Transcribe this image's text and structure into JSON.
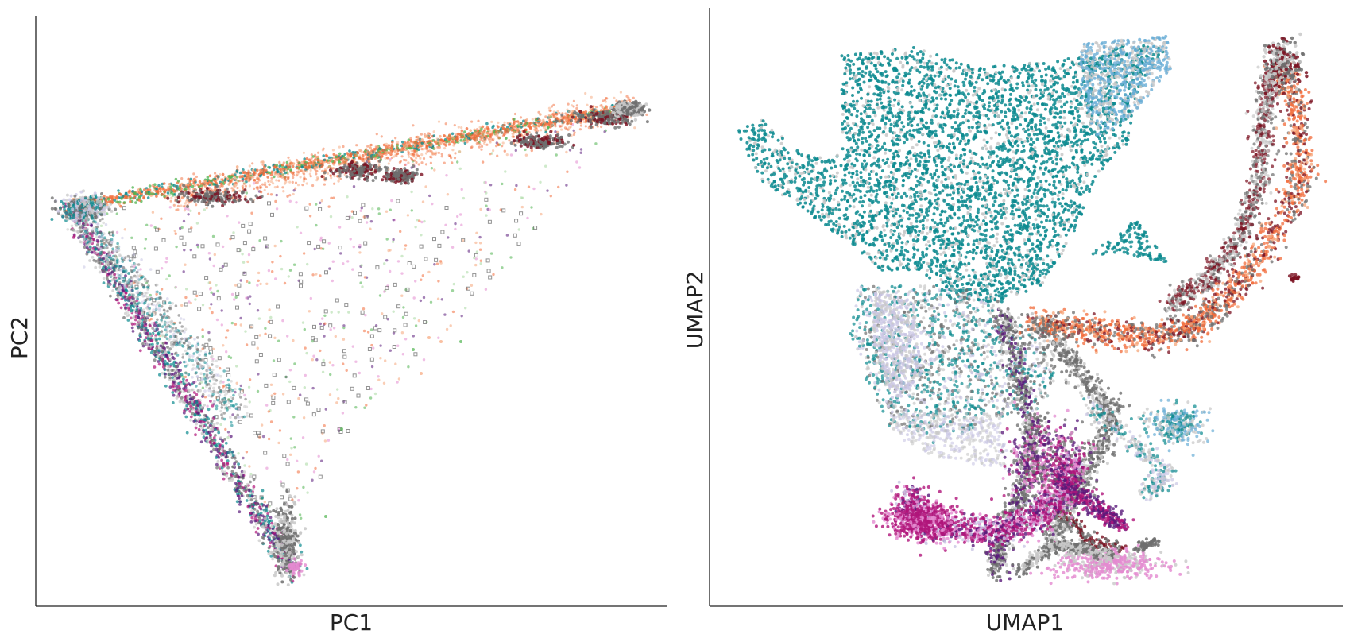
{
  "chart_data": [
    {
      "type": "scatter",
      "xlabel": "PC1",
      "ylabel": "PC2",
      "grid": false,
      "legend": "none",
      "x_ticks": "none",
      "y_ticks": "none"
    },
    {
      "type": "scatter",
      "xlabel": "UMAP1",
      "ylabel": "UMAP2",
      "grid": false,
      "legend": "none",
      "x_ticks": "none",
      "y_ticks": "none"
    }
  ],
  "colors": {
    "teal": "#0b8a8f",
    "light_blue": "#6aaed6",
    "lavender": "#c9c6e4",
    "gray": "#6e6e6e",
    "silver": "#c8c8c8",
    "orange": "#f26b3a",
    "light_orange": "#f6a57a",
    "dark_red": "#7a1020",
    "purple": "#5a1a7a",
    "magenta": "#b0157a",
    "pink": "#e38ad0",
    "green": "#4fb34f",
    "light_green": "#a7d9a0"
  }
}
